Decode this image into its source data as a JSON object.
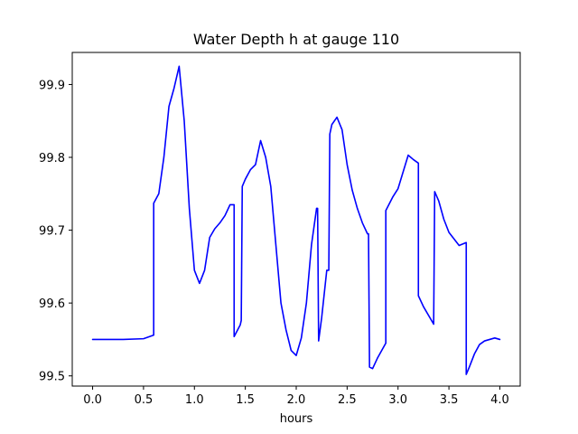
{
  "chart_data": {
    "type": "line",
    "title": "Water Depth h at gauge 110",
    "xlabel": "hours",
    "ylabel": "",
    "xlim": [
      -0.2,
      4.2
    ],
    "ylim": [
      99.486,
      99.944
    ],
    "xticks": [
      0.0,
      0.5,
      1.0,
      1.5,
      2.0,
      2.5,
      3.0,
      3.5,
      4.0
    ],
    "xtick_labels": [
      "0.0",
      "0.5",
      "1.0",
      "1.5",
      "2.0",
      "2.5",
      "3.0",
      "3.5",
      "4.0"
    ],
    "yticks": [
      99.5,
      99.6,
      99.7,
      99.8,
      99.9
    ],
    "ytick_labels": [
      "99.5",
      "99.6",
      "99.7",
      "99.8",
      "99.9"
    ],
    "grid": false,
    "series": [
      {
        "color": "#0000ff",
        "x": [
          0.0,
          0.3,
          0.5,
          0.6,
          0.6,
          0.65,
          0.7,
          0.75,
          0.8,
          0.85,
          0.9,
          0.95,
          1.0,
          1.05,
          1.1,
          1.15,
          1.2,
          1.25,
          1.3,
          1.35,
          1.39,
          1.39,
          1.45,
          1.46,
          1.47,
          1.5,
          1.55,
          1.6,
          1.65,
          1.7,
          1.75,
          1.8,
          1.85,
          1.9,
          1.95,
          2.0,
          2.05,
          2.1,
          2.15,
          2.2,
          2.21,
          2.22,
          2.25,
          2.3,
          2.32,
          2.33,
          2.35,
          2.4,
          2.45,
          2.5,
          2.55,
          2.6,
          2.65,
          2.7,
          2.71,
          2.72,
          2.75,
          2.8,
          2.88,
          2.88,
          2.95,
          3.0,
          3.05,
          3.1,
          3.15,
          3.2,
          3.2,
          3.25,
          3.35,
          3.36,
          3.4,
          3.45,
          3.5,
          3.6,
          3.67,
          3.67,
          3.7,
          3.75,
          3.8,
          3.85,
          3.95,
          4.0
        ],
        "values": [
          99.55,
          99.55,
          99.551,
          99.556,
          99.737,
          99.75,
          99.8,
          99.87,
          99.895,
          99.925,
          99.85,
          99.73,
          99.645,
          99.627,
          99.645,
          99.69,
          99.702,
          99.71,
          99.72,
          99.735,
          99.735,
          99.554,
          99.57,
          99.576,
          99.76,
          99.77,
          99.783,
          99.79,
          99.823,
          99.8,
          99.76,
          99.68,
          99.6,
          99.563,
          99.535,
          99.528,
          99.552,
          99.6,
          99.68,
          99.73,
          99.73,
          99.548,
          99.58,
          99.645,
          99.645,
          99.832,
          99.845,
          99.855,
          99.838,
          99.79,
          99.755,
          99.73,
          99.71,
          99.695,
          99.695,
          99.512,
          99.51,
          99.525,
          99.545,
          99.727,
          99.746,
          99.757,
          99.78,
          99.803,
          99.797,
          99.792,
          99.61,
          99.595,
          99.571,
          99.753,
          99.74,
          99.715,
          99.697,
          99.679,
          99.683,
          99.502,
          99.512,
          99.53,
          99.543,
          99.548,
          99.552,
          99.55
        ]
      }
    ]
  }
}
